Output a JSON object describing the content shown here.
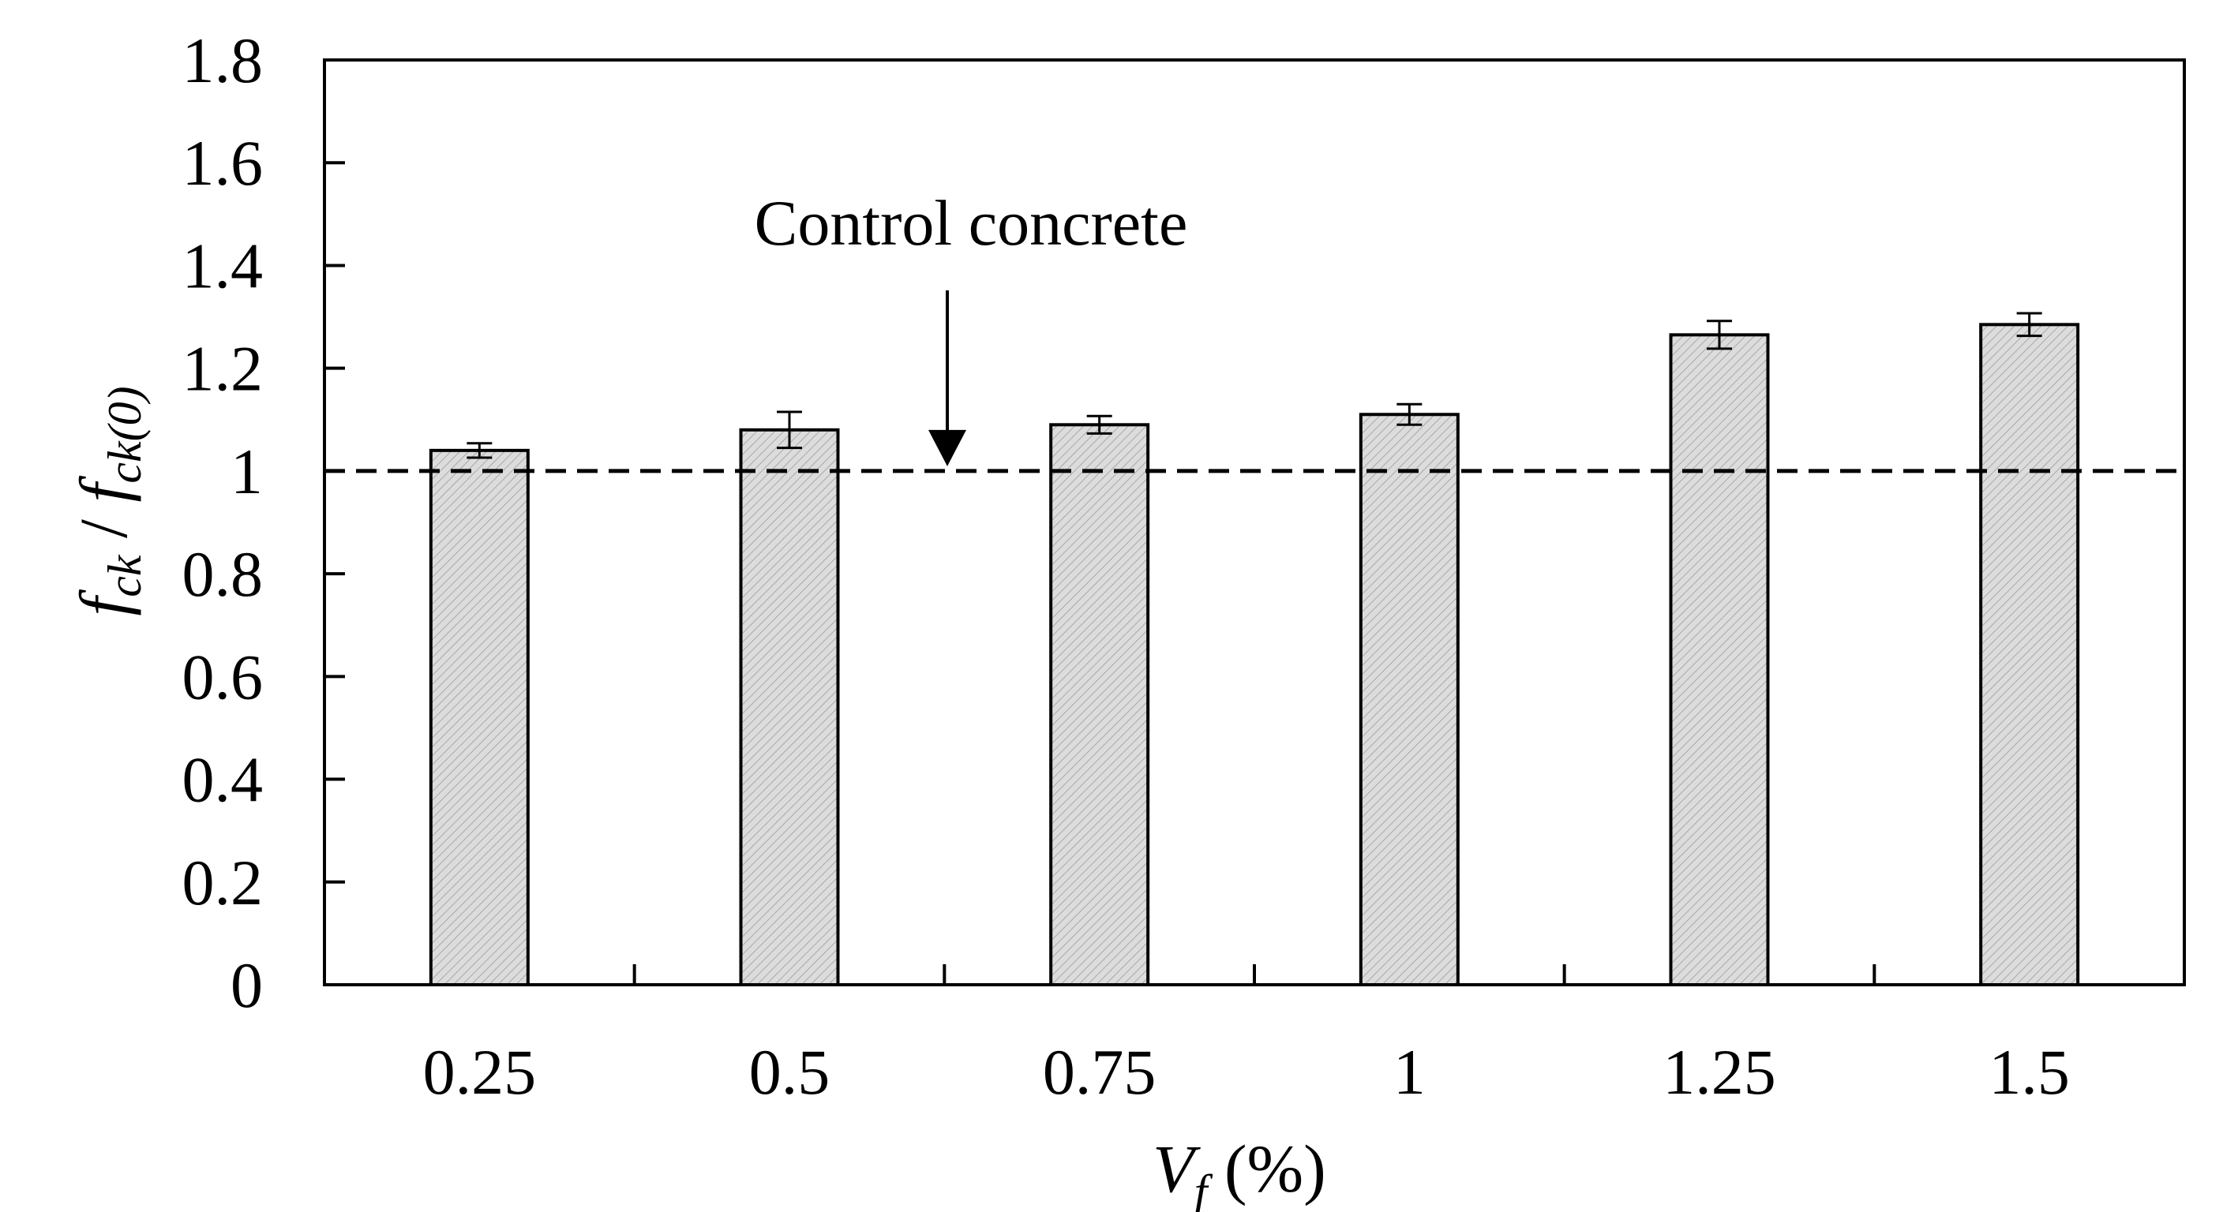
{
  "chart_data": {
    "type": "bar",
    "categories": [
      "0.25",
      "0.5",
      "0.75",
      "1",
      "1.25",
      "1.5"
    ],
    "series": [
      {
        "values": [
          1.04,
          1.08,
          1.09,
          1.11,
          1.265,
          1.285
        ],
        "errors": [
          0.014,
          0.035,
          0.017,
          0.02,
          0.027,
          0.022
        ]
      }
    ],
    "xlabel": {
      "main": "V",
      "sub": "f",
      "unit": " (%)"
    },
    "ylabel": {
      "p1": "f",
      "p1sub": "ck",
      "sep": " / ",
      "p2": "f",
      "p2sub": "ck(0)"
    },
    "ylim": [
      0,
      1.8
    ],
    "yticks": [
      "0",
      "0.2",
      "0.4",
      "0.6",
      "0.8",
      "1",
      "1.2",
      "1.4",
      "1.6",
      "1.8"
    ],
    "reference_line": {
      "value": 1,
      "style": "dashed",
      "label": "Control concrete"
    },
    "grid": false,
    "legend": "none",
    "bar_fill": "#d9d9d9",
    "colors": {
      "axis": "#000000",
      "bar_edge": "#000000",
      "background": "#ffffff"
    }
  }
}
